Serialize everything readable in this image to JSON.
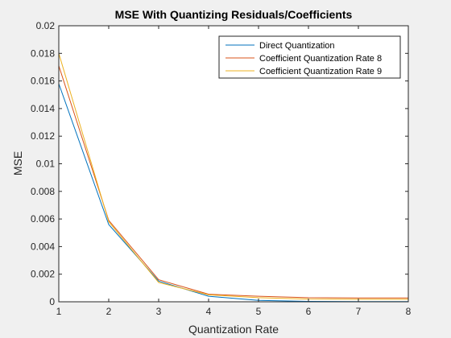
{
  "chart_data": {
    "type": "line",
    "title": "MSE With Quantizing Residuals/Coefficients",
    "xlabel": "Quantization Rate",
    "ylabel": "MSE",
    "xlim": [
      1,
      8
    ],
    "ylim": [
      0,
      0.02
    ],
    "xticks": [
      1,
      2,
      3,
      4,
      5,
      6,
      7,
      8
    ],
    "xtick_labels": [
      "1",
      "2",
      "3",
      "4",
      "5",
      "6",
      "7",
      "8"
    ],
    "yticks": [
      0,
      0.002,
      0.004,
      0.006,
      0.008,
      0.01,
      0.012,
      0.014,
      0.016,
      0.018,
      0.02
    ],
    "ytick_labels": [
      "0",
      "0.002",
      "0.004",
      "0.006",
      "0.008",
      "0.01",
      "0.012",
      "0.014",
      "0.016",
      "0.018",
      "0.02"
    ],
    "grid": false,
    "legend_position": "top-right",
    "x": [
      1,
      2,
      3,
      4,
      5,
      6,
      7,
      8
    ],
    "series": [
      {
        "name": "Direct Quantization",
        "color": "#0072bd",
        "values": [
          0.0158,
          0.0056,
          0.0015,
          0.0004,
          0.0001,
          3e-05,
          2e-05,
          1e-05
        ]
      },
      {
        "name": "Coefficient Quantization Rate 8",
        "color": "#d95319",
        "values": [
          0.0171,
          0.0059,
          0.0016,
          0.00055,
          0.0004,
          0.0003,
          0.00028,
          0.00028
        ]
      },
      {
        "name": "Coefficient Quantization Rate 9",
        "color": "#edb120",
        "values": [
          0.018,
          0.0058,
          0.0014,
          0.0005,
          0.0003,
          0.0002,
          0.00018,
          0.00018
        ]
      }
    ]
  }
}
